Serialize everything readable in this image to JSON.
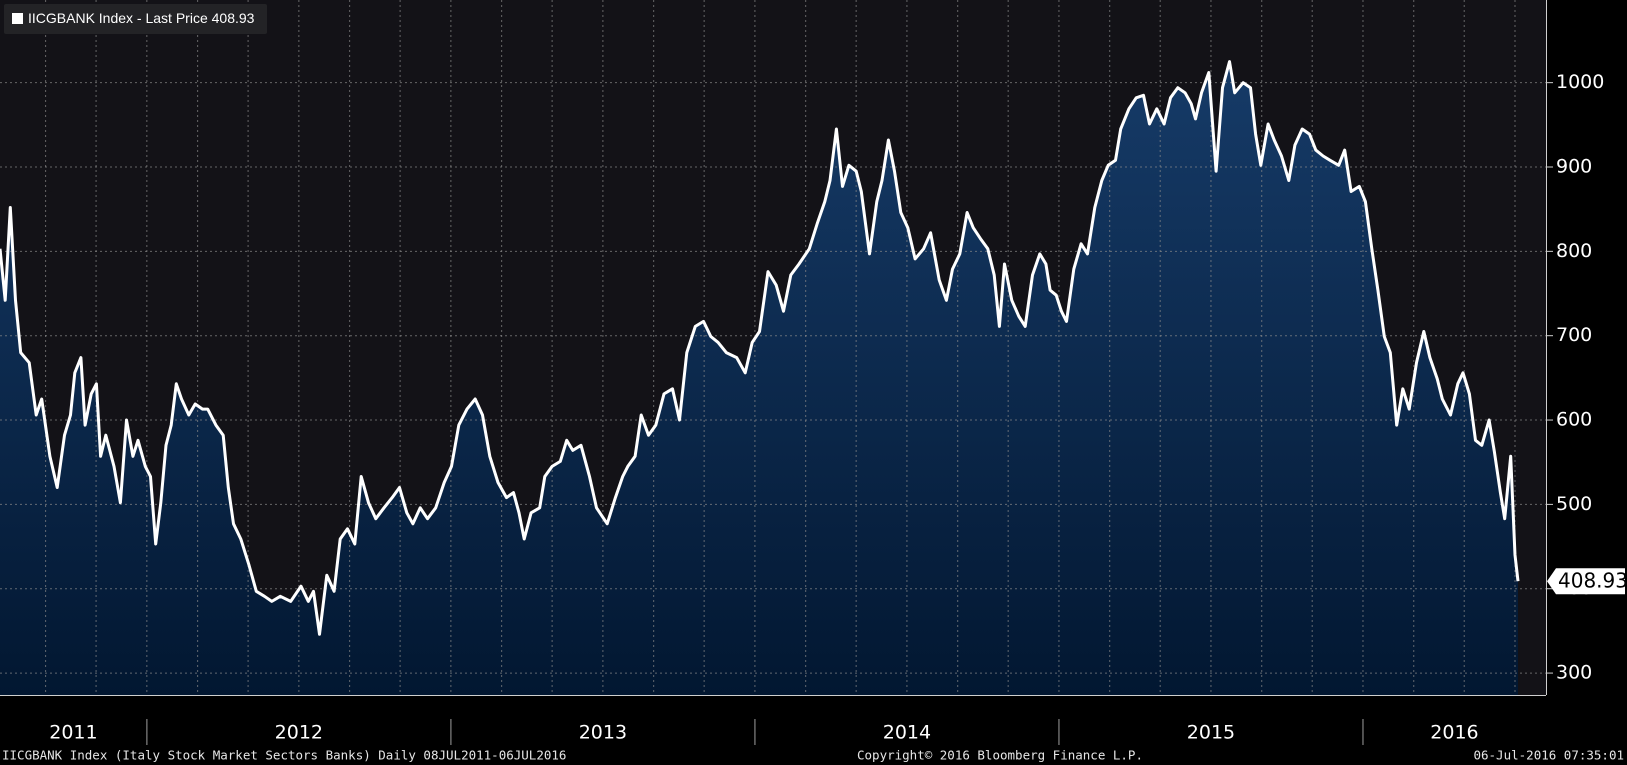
{
  "chart_data": {
    "type": "area",
    "series": [
      {
        "name": "IICGBANK Index - Last Price 408.93",
        "color": "#ffffff",
        "axis": "y2",
        "x": [
          2011.517,
          2011.534,
          2011.551,
          2011.568,
          2011.585,
          2011.613,
          2011.636,
          2011.654,
          2011.681,
          2011.705,
          2011.729,
          2011.749,
          2011.763,
          2011.783,
          2011.797,
          2011.817,
          2011.834,
          2011.848,
          2011.865,
          2011.892,
          2011.913,
          2011.933,
          2011.954,
          2011.971,
          2011.995,
          2012.012,
          2012.029,
          2012.046,
          2012.063,
          2012.08,
          2012.097,
          2012.114,
          2012.138,
          2012.159,
          2012.183,
          2012.2,
          2012.227,
          2012.251,
          2012.268,
          2012.285,
          2012.309,
          2012.336,
          2012.36,
          2012.387,
          2012.411,
          2012.439,
          2012.473,
          2012.507,
          2012.531,
          2012.548,
          2012.568,
          2012.592,
          2012.616,
          2012.636,
          2012.66,
          2012.684,
          2012.705,
          2012.729,
          2012.753,
          2012.78,
          2012.807,
          2012.831,
          2012.855,
          2012.875,
          2012.899,
          2012.923,
          2012.95,
          2012.978,
          2013.002,
          2013.026,
          2013.053,
          2013.08,
          2013.104,
          2013.128,
          2013.155,
          2013.183,
          2013.206,
          2013.224,
          2013.241,
          2013.264,
          2013.292,
          2013.309,
          2013.333,
          2013.36,
          2013.381,
          2013.401,
          2013.428,
          2013.456,
          2013.479,
          2013.514,
          2013.541,
          2013.565,
          2013.582,
          2013.606,
          2013.626,
          2013.65,
          2013.674,
          2013.701,
          2013.729,
          2013.752,
          2013.776,
          2013.804,
          2013.831,
          2013.855,
          2013.879,
          2013.906,
          2013.94,
          2013.968,
          2013.991,
          2014.015,
          2014.043,
          2014.07,
          2014.094,
          2014.118,
          2014.145,
          2014.179,
          2014.206,
          2014.23,
          2014.247,
          2014.268,
          2014.288,
          2014.309,
          2014.333,
          2014.35,
          2014.377,
          2014.401,
          2014.418,
          2014.439,
          2014.459,
          2014.48,
          2014.503,
          2014.527,
          2014.555,
          2014.578,
          2014.606,
          2014.63,
          2014.65,
          2014.674,
          2014.698,
          2014.718,
          2014.742,
          2014.766,
          2014.787,
          2014.804,
          2014.821,
          2014.845,
          2014.868,
          2014.889,
          2014.913,
          2014.937,
          2014.957,
          2014.971,
          2014.991,
          2015.008,
          2015.025,
          2015.049,
          2015.073,
          2015.094,
          2015.118,
          2015.141,
          2015.162,
          2015.186,
          2015.203,
          2015.23,
          2015.254,
          2015.278,
          2015.298,
          2015.322,
          2015.346,
          2015.367,
          2015.391,
          2015.415,
          2015.435,
          2015.449,
          2015.469,
          2015.493,
          2015.517,
          2015.538,
          2015.561,
          2015.578,
          2015.606,
          2015.63,
          2015.647,
          2015.664,
          2015.688,
          2015.708,
          2015.732,
          2015.756,
          2015.776,
          2015.8,
          2015.824,
          2015.845,
          2015.869,
          2015.892,
          2015.92,
          2015.94,
          2015.961,
          2015.988,
          2016.008,
          2016.029,
          2016.049,
          2016.07,
          2016.09,
          2016.111,
          2016.131,
          2016.152,
          2016.176,
          2016.2,
          2016.22,
          2016.244,
          2016.261,
          2016.288,
          2016.312,
          2016.329,
          2016.35,
          2016.37,
          2016.391,
          2016.415,
          2016.432,
          2016.452,
          2016.466,
          2016.486,
          2016.5,
          2016.51
        ],
        "values": [
          803,
          742,
          852,
          742,
          680,
          668,
          606,
          625,
          557,
          520,
          582,
          606,
          656,
          674,
          594,
          631,
          643,
          557,
          582,
          545,
          502,
          600,
          557,
          576,
          545,
          533,
          453,
          502,
          570,
          594,
          643,
          625,
          606,
          619,
          613,
          613,
          594,
          582,
          520,
          477,
          459,
          428,
          397,
          391,
          385,
          391,
          385,
          403,
          385,
          397,
          346,
          416,
          397,
          459,
          471,
          453,
          533,
          502,
          483,
          496,
          508,
          520,
          490,
          477,
          496,
          483,
          496,
          526,
          545,
          594,
          613,
          625,
          606,
          557,
          526,
          508,
          514,
          490,
          459,
          490,
          496,
          533,
          545,
          551,
          576,
          564,
          570,
          533,
          496,
          477,
          508,
          533,
          545,
          557,
          606,
          582,
          594,
          631,
          637,
          600,
          680,
          711,
          717,
          699,
          692,
          680,
          674,
          656,
          692,
          705,
          776,
          760,
          729,
          772,
          785,
          803,
          834,
          859,
          884,
          945,
          877,
          902,
          895,
          871,
          797,
          859,
          884,
          932,
          895,
          846,
          828,
          791,
          803,
          822,
          766,
          742,
          779,
          797,
          846,
          828,
          815,
          803,
          772,
          711,
          785,
          742,
          723,
          711,
          772,
          797,
          785,
          754,
          748,
          729,
          717,
          779,
          809,
          797,
          852,
          884,
          902,
          908,
          945,
          969,
          982,
          985,
          951,
          969,
          951,
          982,
          994,
          988,
          975,
          957,
          988,
          1012,
          895,
          994,
          1025,
          988,
          1000,
          994,
          939,
          902,
          951,
          932,
          913,
          884,
          926,
          945,
          939,
          920,
          913,
          908,
          902,
          920,
          871,
          877,
          859,
          803,
          754,
          699,
          680,
          594,
          637,
          613,
          668,
          705,
          674,
          649,
          625,
          606,
          643,
          656,
          631,
          576,
          570,
          600,
          563,
          514,
          483,
          557,
          440,
          408.93
        ]
      }
    ],
    "xlim": [
      2011.517,
      2016.602
    ],
    "xticks": [
      2012,
      2013,
      2014,
      2015,
      2016
    ],
    "xlabels": [
      2011,
      2012,
      2013,
      2014,
      2015,
      2016
    ],
    "xgrid": [
      2011.667,
      2011.833,
      2012,
      2012.167,
      2012.333,
      2012.5,
      2012.667,
      2012.833,
      2013,
      2013.167,
      2013.333,
      2013.5,
      2013.667,
      2013.833,
      2014,
      2014.167,
      2014.333,
      2014.5,
      2014.667,
      2014.833,
      2015,
      2015.167,
      2015.333,
      2015.5,
      2015.667,
      2015.833,
      2016,
      2016.167,
      2016.333,
      2016.5
    ],
    "y2lim": [
      274,
      1098
    ],
    "y2ticks": [
      300,
      400,
      500,
      600,
      700,
      800,
      900,
      1000
    ],
    "grid": true,
    "background": "#131217",
    "area_colors": [
      "#163b68",
      "#021731"
    ],
    "footer": {
      "left": "IICGBANK Index (Italy Stock Market Sectors Banks)  Daily 08JUL2011-06JUL2016",
      "center": "Copyright© 2016 Bloomberg Finance L.P.",
      "right": "06-Jul-2016 07:35:01"
    }
  }
}
